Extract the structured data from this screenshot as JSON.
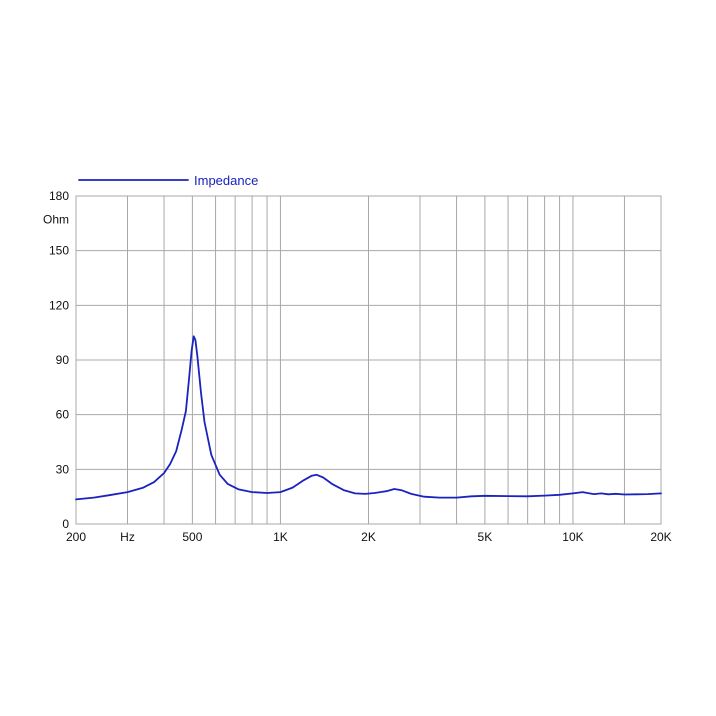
{
  "chart_data": {
    "type": "line",
    "x_scale": "log",
    "xlim": [
      200,
      20000
    ],
    "ylim": [
      0,
      180
    ],
    "grid": true,
    "legend_position": "top-left",
    "ylabel": "Ohm",
    "xlabel": "Hz",
    "y_ticks": [
      0,
      30,
      60,
      90,
      120,
      150,
      180
    ],
    "x_tick_labels": [
      {
        "x": 200,
        "label": "200"
      },
      {
        "x": 500,
        "label": "500"
      },
      {
        "x": 1000,
        "label": "1K"
      },
      {
        "x": 2000,
        "label": "2K"
      },
      {
        "x": 5000,
        "label": "5K"
      },
      {
        "x": 10000,
        "label": "10K"
      },
      {
        "x": 20000,
        "label": "20K"
      }
    ],
    "x_gridlines": [
      300,
      400,
      500,
      600,
      700,
      800,
      900,
      1000,
      2000,
      3000,
      4000,
      5000,
      6000,
      7000,
      8000,
      9000,
      10000,
      15000
    ],
    "series": [
      {
        "name": "Impedance",
        "color": "#1a22c0",
        "points": [
          [
            200,
            13.5
          ],
          [
            230,
            14.5
          ],
          [
            260,
            15.8
          ],
          [
            300,
            17.5
          ],
          [
            340,
            20
          ],
          [
            370,
            23
          ],
          [
            400,
            28
          ],
          [
            420,
            33
          ],
          [
            440,
            40
          ],
          [
            460,
            52
          ],
          [
            475,
            62
          ],
          [
            487,
            80
          ],
          [
            497,
            95
          ],
          [
            505,
            103
          ],
          [
            512,
            101
          ],
          [
            520,
            92
          ],
          [
            535,
            72
          ],
          [
            550,
            56
          ],
          [
            580,
            38
          ],
          [
            620,
            27
          ],
          [
            660,
            22
          ],
          [
            720,
            19
          ],
          [
            800,
            17.5
          ],
          [
            900,
            17
          ],
          [
            1000,
            17.5
          ],
          [
            1100,
            20
          ],
          [
            1200,
            24
          ],
          [
            1280,
            26.5
          ],
          [
            1330,
            27
          ],
          [
            1400,
            25.5
          ],
          [
            1500,
            22
          ],
          [
            1650,
            18.5
          ],
          [
            1800,
            16.8
          ],
          [
            1950,
            16.5
          ],
          [
            2100,
            17
          ],
          [
            2300,
            18
          ],
          [
            2450,
            19.2
          ],
          [
            2600,
            18.5
          ],
          [
            2800,
            16.5
          ],
          [
            3100,
            15
          ],
          [
            3500,
            14.5
          ],
          [
            4000,
            14.5
          ],
          [
            4500,
            15.2
          ],
          [
            5000,
            15.5
          ],
          [
            6000,
            15.3
          ],
          [
            7000,
            15.2
          ],
          [
            8000,
            15.6
          ],
          [
            9000,
            16
          ],
          [
            10000,
            16.8
          ],
          [
            10800,
            17.5
          ],
          [
            11200,
            17
          ],
          [
            11800,
            16.4
          ],
          [
            12500,
            16.8
          ],
          [
            13200,
            16.3
          ],
          [
            14000,
            16.6
          ],
          [
            15000,
            16.2
          ],
          [
            16500,
            16.3
          ],
          [
            18000,
            16.4
          ],
          [
            20000,
            16.8
          ]
        ]
      }
    ]
  }
}
